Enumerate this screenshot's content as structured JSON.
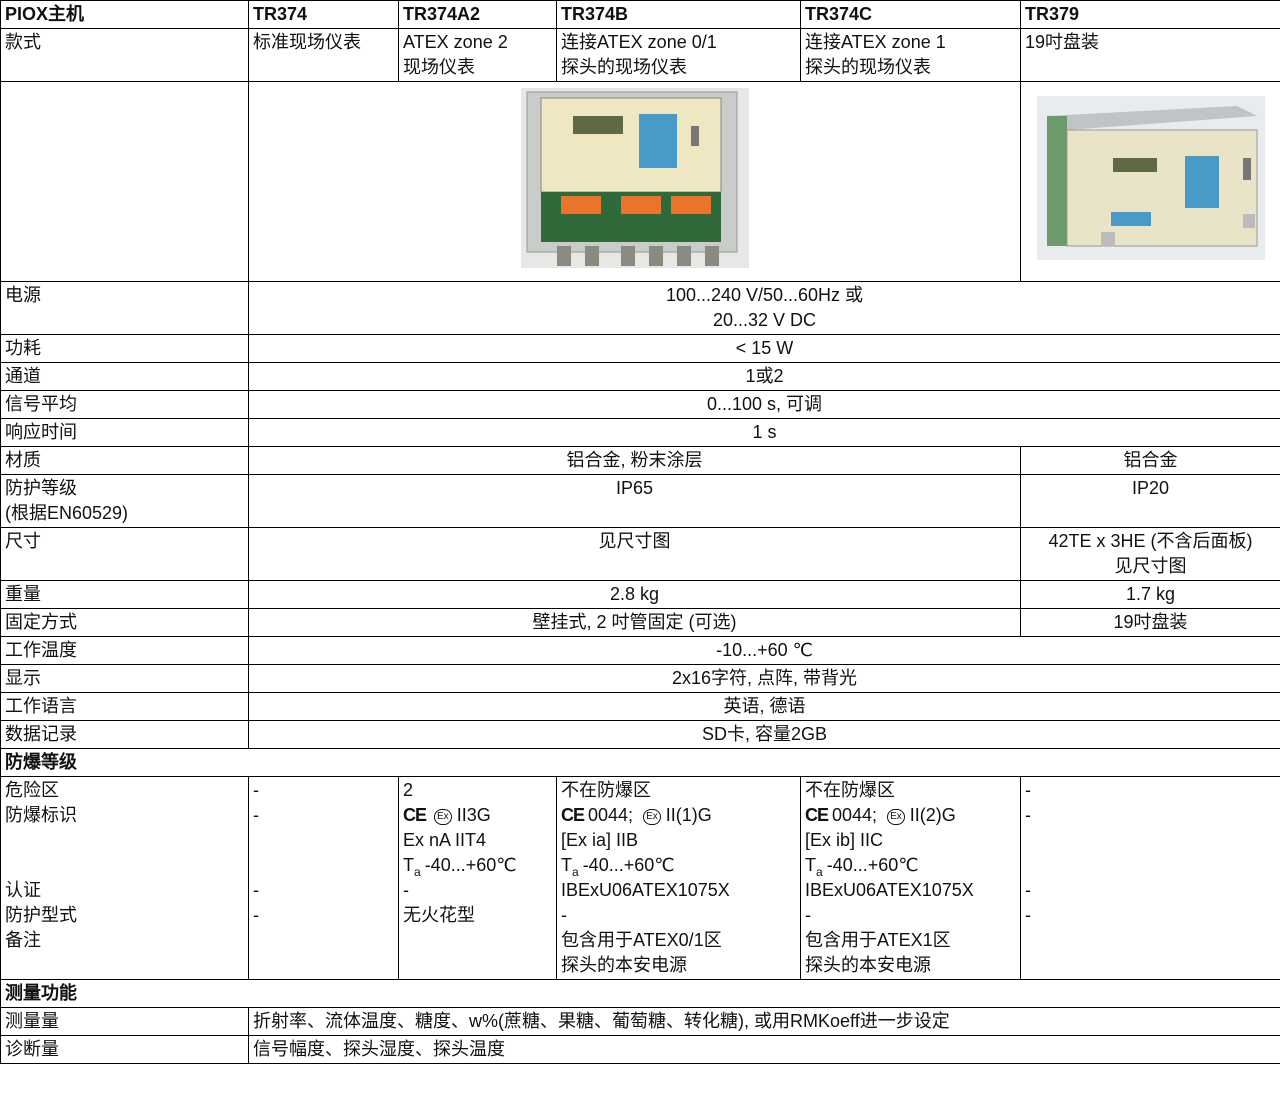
{
  "header": [
    "PIOX主机",
    "TR374",
    "TR374A2",
    "TR374B",
    "TR374C",
    "TR379"
  ],
  "style": {
    "label": "款式",
    "values": [
      [
        "标准现场仪表"
      ],
      [
        "ATEX zone 2",
        "现场仪表"
      ],
      [
        "连接ATEX zone 0/1",
        "探头的现场仪表"
      ],
      [
        "连接ATEX zone 1",
        "探头的现场仪表"
      ],
      [
        "19吋盘装"
      ]
    ]
  },
  "specs": [
    {
      "label": [
        "电源"
      ],
      "cells": [
        [
          "100...240 V/50...60Hz 或",
          "20...32 V DC"
        ]
      ]
    },
    {
      "label": [
        "功耗"
      ],
      "cells": [
        [
          "< 15 W"
        ]
      ]
    },
    {
      "label": [
        "通道"
      ],
      "cells": [
        [
          "1或2"
        ]
      ]
    },
    {
      "label": [
        "信号平均"
      ],
      "cells": [
        [
          "0...100 s, 可调"
        ]
      ]
    },
    {
      "label": [
        "响应时间"
      ],
      "cells": [
        [
          "1 s"
        ]
      ]
    },
    {
      "label": [
        "材质"
      ],
      "cells": [
        [
          "铝合金, 粉末涂层"
        ],
        [
          "铝合金"
        ]
      ]
    },
    {
      "label": [
        "防护等级",
        "(根据EN60529)"
      ],
      "cells": [
        [
          "IP65"
        ],
        [
          "IP20"
        ]
      ]
    },
    {
      "label": [
        "尺寸"
      ],
      "cells": [
        [
          "见尺寸图"
        ],
        [
          "42TE x 3HE (不含后面板)",
          "见尺寸图"
        ]
      ]
    },
    {
      "label": [
        "重量"
      ],
      "cells": [
        [
          "2.8 kg"
        ],
        [
          "1.7 kg"
        ]
      ]
    },
    {
      "label": [
        "固定方式"
      ],
      "cells": [
        [
          "壁挂式, 2 吋管固定 (可选)"
        ],
        [
          "19吋盘装"
        ]
      ]
    },
    {
      "label": [
        "工作温度"
      ],
      "cells": [
        [
          "-10...+60 ℃"
        ]
      ]
    },
    {
      "label": [
        "显示"
      ],
      "cells": [
        [
          "2x16字符, 点阵, 带背光"
        ]
      ]
    },
    {
      "label": [
        "工作语言"
      ],
      "cells": [
        [
          "英语, 德语"
        ]
      ]
    },
    {
      "label": [
        "数据记录"
      ],
      "cells": [
        [
          "SD卡, 容量2GB"
        ]
      ]
    }
  ],
  "ex_section": "防爆等级",
  "ex": [
    [
      "危险区",
      "防爆标识",
      null,
      null,
      "认证",
      "防护型式",
      "备注"
    ],
    [
      "-",
      "-",
      null,
      null,
      "-",
      "-"
    ],
    [
      "2",
      {
        "ce": "CE",
        "ex": "Ex",
        "text": "II3G"
      },
      "Ex nA IIT4",
      {
        "symbol": "T",
        "subscript": "a",
        "text": "-40...+60℃"
      },
      "-",
      "无火花型"
    ],
    [
      "不在防爆区",
      {
        "ce": "CE",
        "text1": "0044;",
        "ex": "Ex",
        "text": "II(1)G"
      },
      "[Ex ia] IIB",
      {
        "symbol": "T",
        "subscript": "a",
        "text": "-40...+60℃"
      },
      "IBExU06ATEX1075X",
      "-",
      "包含用于ATEX0/1区",
      "探头的本安电源"
    ],
    [
      "不在防爆区",
      {
        "ce": "CE",
        "text1": "0044;",
        "ex": "Ex",
        "text": "II(2)G"
      },
      "[Ex ib] IIC",
      {
        "symbol": "T",
        "subscript": "a",
        "text": "-40...+60℃"
      },
      "IBExU06ATEX1075X",
      "-",
      "包含用于ATEX1区",
      "探头的本安电源"
    ],
    [
      "-",
      "-",
      null,
      null,
      "-",
      "-"
    ]
  ],
  "measure_section": "测量功能",
  "measure": [
    {
      "label": "测量量",
      "text": "折射率、流体温度、糖度、w%(蔗糖、果糖、葡萄糖、转化糖), 或用RMKoeff进一步设定"
    },
    {
      "label": "诊断量",
      "text": "信号幅度、探头湿度、探头温度"
    }
  ]
}
